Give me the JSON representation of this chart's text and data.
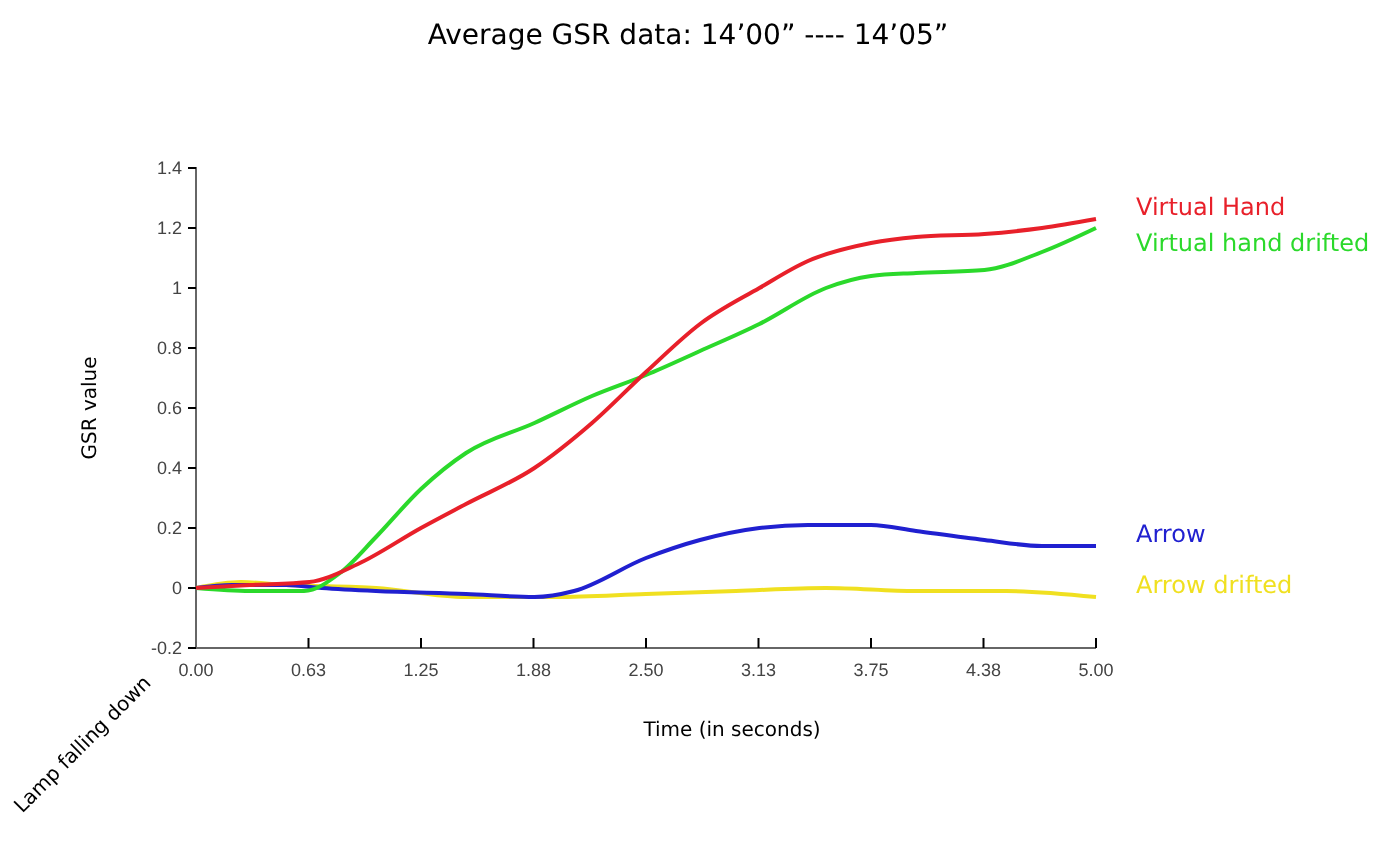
{
  "chart_data": {
    "type": "line",
    "title": "Average GSR data: 14’00” ---- 14’05”",
    "xlabel": "Time (in seconds)",
    "ylabel": "GSR value",
    "xlim": [
      0,
      5
    ],
    "ylim": [
      -0.2,
      1.4
    ],
    "xticks": [
      {
        "value": 0,
        "label": "0.00"
      },
      {
        "value": 0.625,
        "label": "0.63"
      },
      {
        "value": 1.25,
        "label": "1.25"
      },
      {
        "value": 1.875,
        "label": "1.88"
      },
      {
        "value": 2.5,
        "label": "2.50"
      },
      {
        "value": 3.125,
        "label": "3.13"
      },
      {
        "value": 3.75,
        "label": "3.75"
      },
      {
        "value": 4.375,
        "label": "4.38"
      },
      {
        "value": 5,
        "label": "5.00"
      }
    ],
    "yticks": [
      -0.2,
      0,
      0.2,
      0.4,
      0.6,
      0.8,
      1,
      1.2,
      1.4
    ],
    "grid": false,
    "legend": false,
    "annotations": [
      "Lamp falling down"
    ],
    "series": [
      {
        "name": "Virtual Hand",
        "color": "#e8202a",
        "x": [
          0,
          0.3,
          0.63,
          0.9,
          1.25,
          1.5,
          1.88,
          2.2,
          2.5,
          2.8,
          3.13,
          3.4,
          3.75,
          4.0,
          4.38,
          4.7,
          5.0
        ],
        "values": [
          0,
          0.01,
          0.02,
          0.08,
          0.2,
          0.28,
          0.4,
          0.55,
          0.72,
          0.88,
          1.0,
          1.09,
          1.15,
          1.17,
          1.18,
          1.2,
          1.23
        ]
      },
      {
        "name": "Virtual hand drifted",
        "color": "#2bd92b",
        "x": [
          0,
          0.3,
          0.6,
          0.8,
          1.0,
          1.25,
          1.5,
          1.88,
          2.2,
          2.5,
          2.8,
          3.13,
          3.5,
          3.75,
          4.0,
          4.38,
          4.7,
          5.0
        ],
        "values": [
          0,
          -0.01,
          -0.01,
          0.05,
          0.17,
          0.33,
          0.45,
          0.55,
          0.64,
          0.71,
          0.79,
          0.88,
          1.0,
          1.04,
          1.05,
          1.06,
          1.12,
          1.2
        ]
      },
      {
        "name": "Arrow",
        "color": "#2020d0",
        "x": [
          0,
          0.2,
          0.5,
          0.7,
          1.0,
          1.5,
          1.88,
          2.1,
          2.5,
          2.8,
          3.13,
          3.4,
          3.75,
          4.0,
          4.38,
          4.7,
          5.0
        ],
        "values": [
          0,
          0.01,
          0.01,
          0.0,
          -0.01,
          -0.02,
          -0.03,
          -0.01,
          0.1,
          0.16,
          0.2,
          0.21,
          0.21,
          0.19,
          0.16,
          0.14,
          0.14
        ]
      },
      {
        "name": "Arrow drifted",
        "color": "#f0e020",
        "x": [
          0,
          0.25,
          0.5,
          1.0,
          1.5,
          2.0,
          2.5,
          3.0,
          3.5,
          4.0,
          4.5,
          5.0
        ],
        "values": [
          0,
          0.02,
          0.01,
          0.0,
          -0.03,
          -0.03,
          -0.02,
          -0.01,
          0.0,
          -0.01,
          -0.01,
          -0.03
        ]
      }
    ]
  }
}
